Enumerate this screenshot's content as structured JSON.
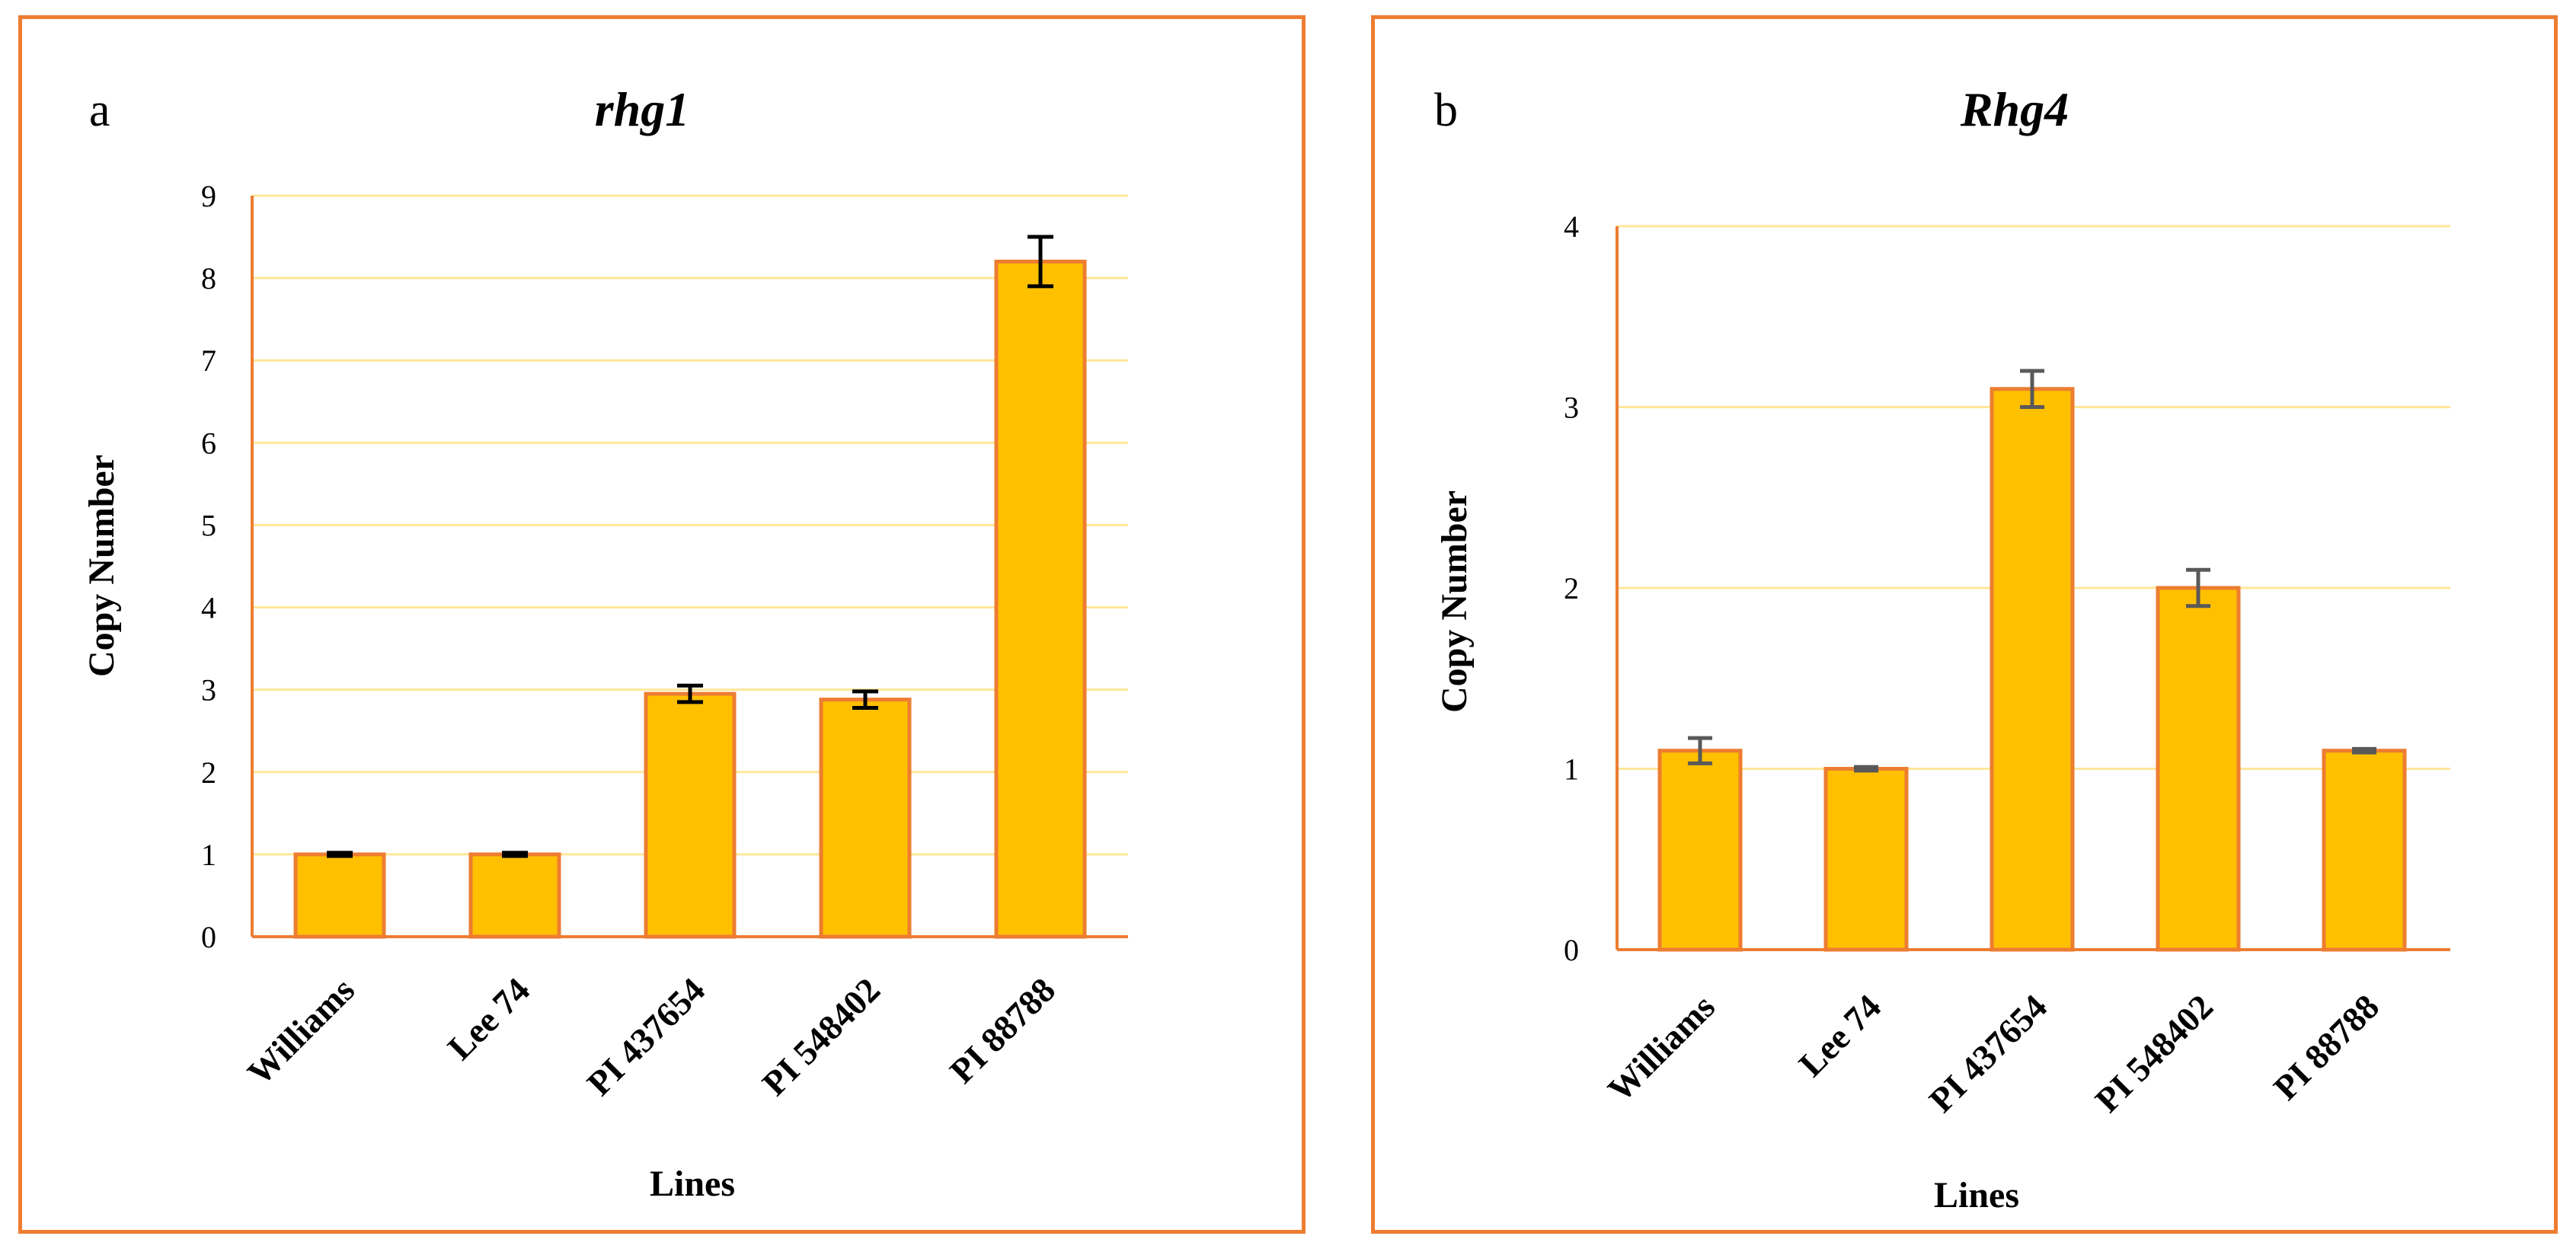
{
  "chart_data": [
    {
      "panel": "a",
      "type": "bar",
      "title": "rhg1",
      "xlabel": "Lines",
      "ylabel": "Copy Number",
      "ylim": [
        0,
        9
      ],
      "yticks": [
        0,
        1,
        2,
        3,
        4,
        5,
        6,
        7,
        8,
        9
      ],
      "grid": true,
      "categories": [
        "Williams",
        "Lee 74",
        "PI 437654",
        "PI 548402",
        "PI 88788"
      ],
      "values": [
        1.0,
        1.0,
        2.95,
        2.88,
        8.2
      ],
      "errors": [
        0.02,
        0.02,
        0.1,
        0.1,
        0.3
      ],
      "colors": {
        "bar": "#ffc000",
        "bar_edge": "#ed7d31",
        "axis": "#ed7d31",
        "grid": "#ffe699",
        "error": "#000000"
      }
    },
    {
      "panel": "b",
      "type": "bar",
      "title": "Rhg4",
      "xlabel": "Lines",
      "ylabel": "Copy Number",
      "ylim": [
        0,
        4
      ],
      "yticks": [
        0,
        1,
        2,
        3,
        4
      ],
      "grid": true,
      "categories": [
        "Williams",
        "Lee 74",
        "PI 437654",
        "PI 548402",
        "PI 88788"
      ],
      "values": [
        1.1,
        1.0,
        3.1,
        2.0,
        1.1
      ],
      "errors": [
        0.07,
        0.01,
        0.1,
        0.1,
        0.01
      ],
      "colors": {
        "bar": "#ffc000",
        "bar_edge": "#ed7d31",
        "axis": "#ed7d31",
        "grid": "#ffe699",
        "error": "#595959"
      }
    }
  ]
}
